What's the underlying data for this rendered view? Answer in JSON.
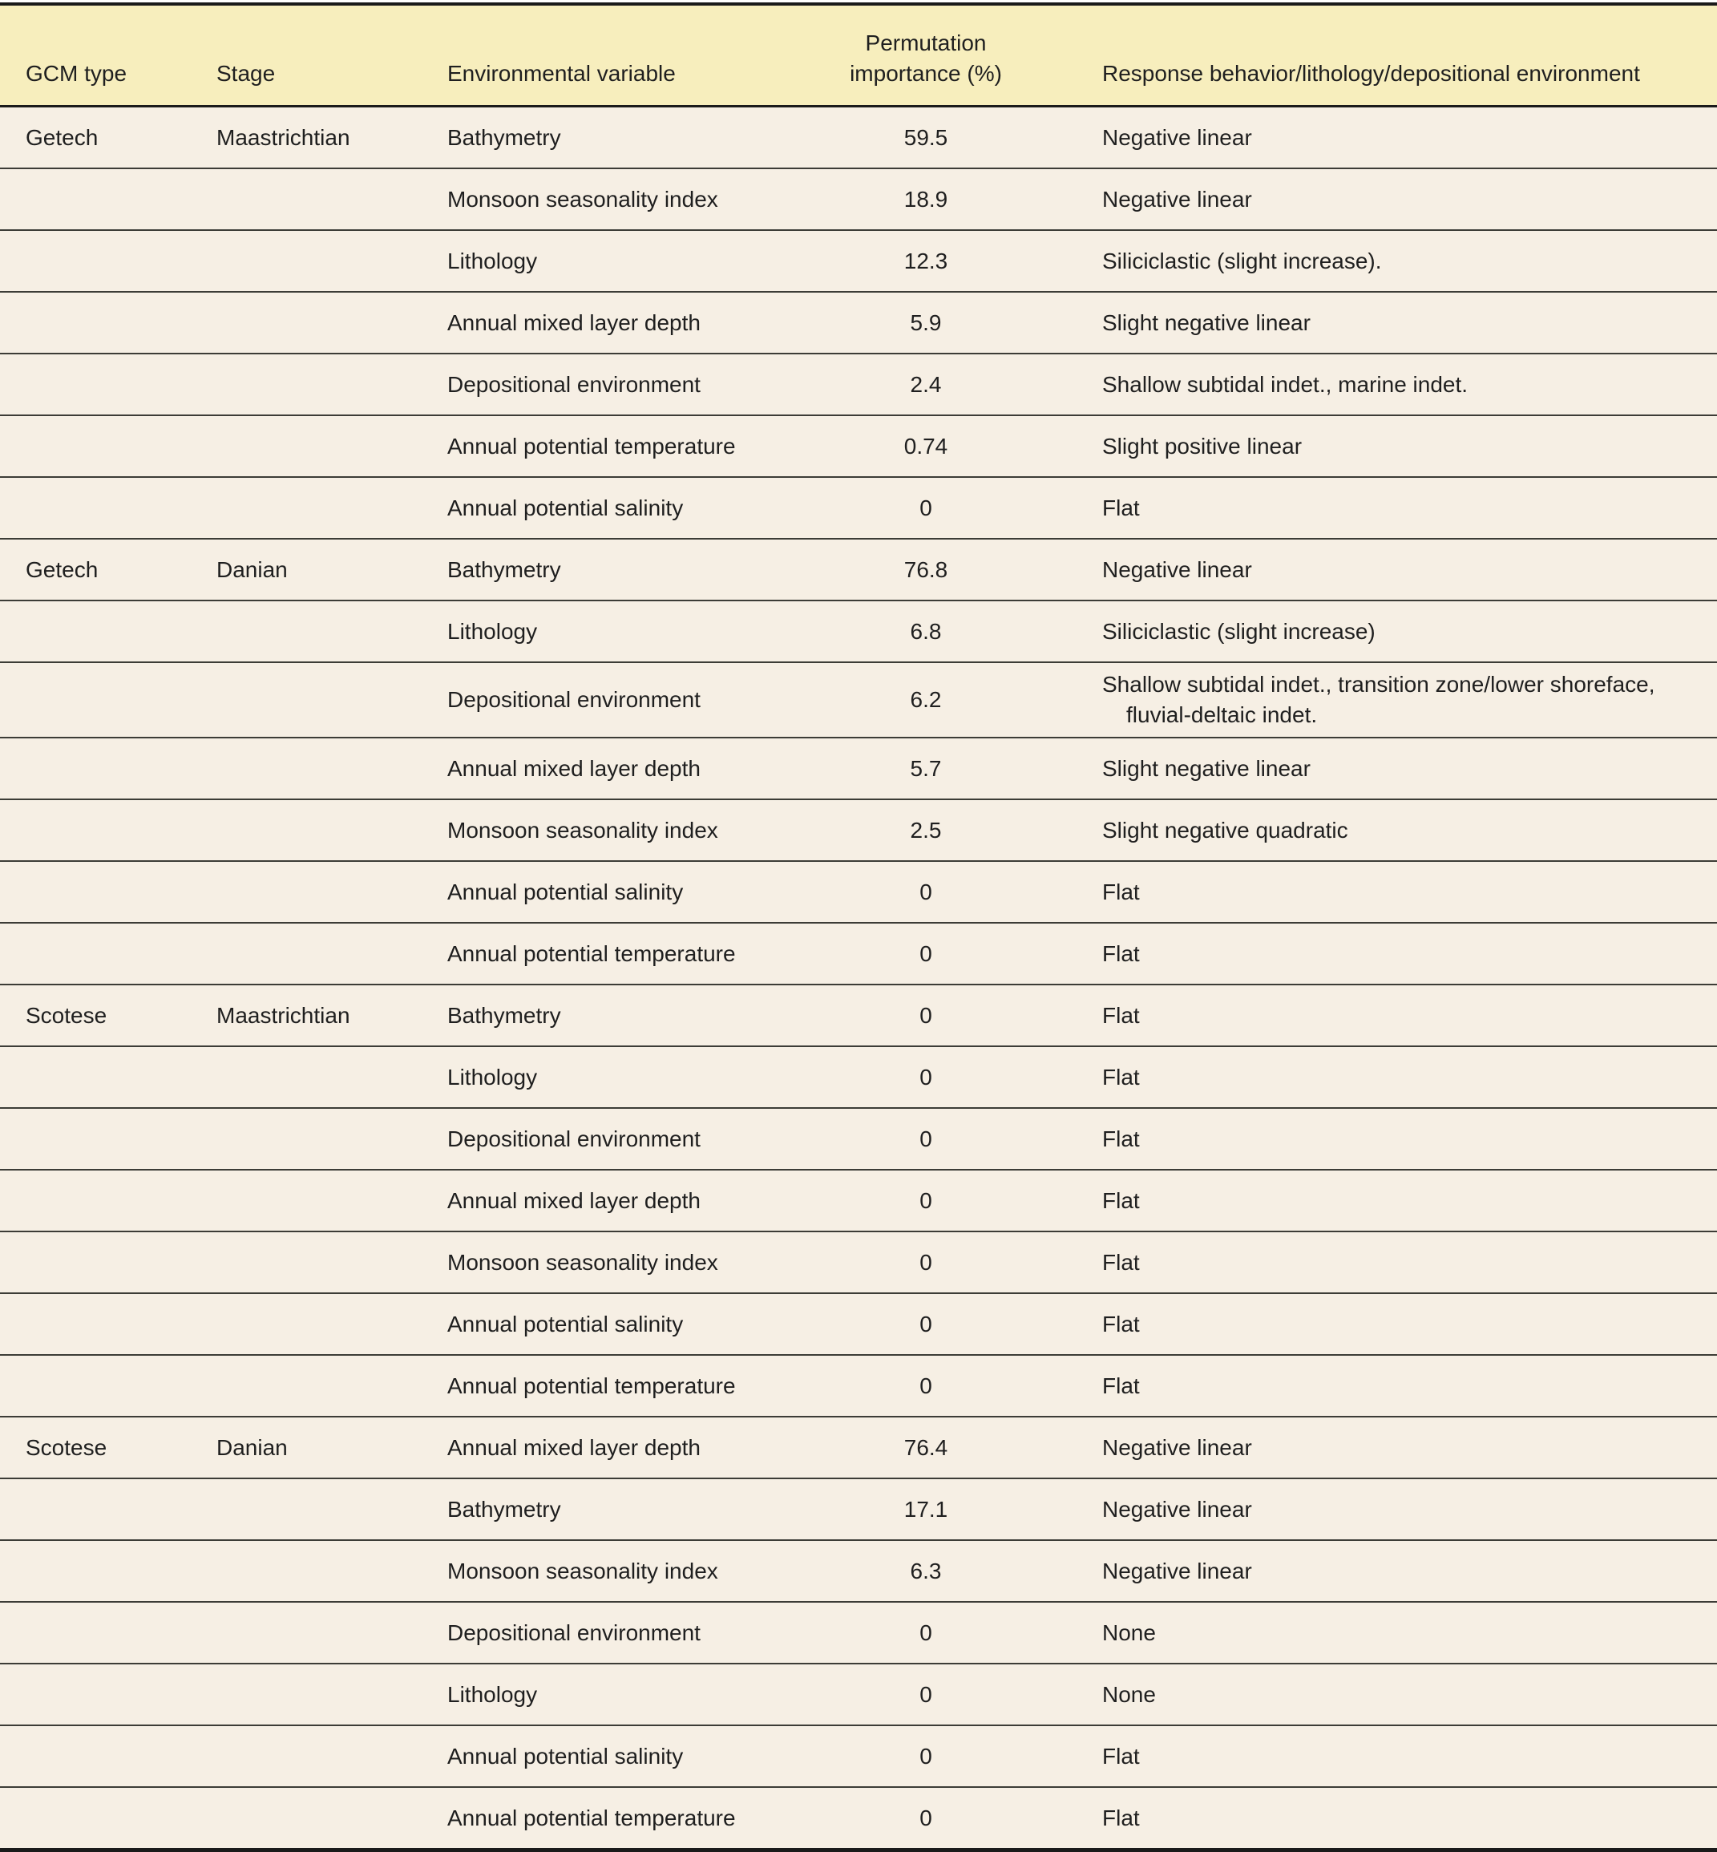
{
  "table": {
    "columns": [
      "GCM type",
      "Stage",
      "Environmental variable",
      "Permutation importance (%)",
      "Response behavior/lithology/depositional environment"
    ],
    "rows": [
      {
        "gcm": "Getech",
        "stage": "Maastrichtian",
        "variable": "Bathymetry",
        "importance": "59.5",
        "response": "Negative linear"
      },
      {
        "gcm": "",
        "stage": "",
        "variable": "Monsoon seasonality index",
        "importance": "18.9",
        "response": "Negative linear"
      },
      {
        "gcm": "",
        "stage": "",
        "variable": "Lithology",
        "importance": "12.3",
        "response": "Siliciclastic (slight increase)."
      },
      {
        "gcm": "",
        "stage": "",
        "variable": "Annual mixed layer depth",
        "importance": "5.9",
        "response": "Slight negative linear"
      },
      {
        "gcm": "",
        "stage": "",
        "variable": "Depositional environment",
        "importance": "2.4",
        "response": "Shallow subtidal indet., marine indet."
      },
      {
        "gcm": "",
        "stage": "",
        "variable": "Annual potential temperature",
        "importance": "0.74",
        "response": "Slight positive linear"
      },
      {
        "gcm": "",
        "stage": "",
        "variable": "Annual potential salinity",
        "importance": "0",
        "response": "Flat"
      },
      {
        "gcm": "Getech",
        "stage": "Danian",
        "variable": "Bathymetry",
        "importance": "76.8",
        "response": "Negative linear"
      },
      {
        "gcm": "",
        "stage": "",
        "variable": "Lithology",
        "importance": "6.8",
        "response": "Siliciclastic (slight increase)"
      },
      {
        "gcm": "",
        "stage": "",
        "variable": "Depositional environment",
        "importance": "6.2",
        "response": "Shallow subtidal indet., transition zone/lower shoreface, fluvial-deltaic indet."
      },
      {
        "gcm": "",
        "stage": "",
        "variable": "Annual mixed layer depth",
        "importance": "5.7",
        "response": "Slight negative linear"
      },
      {
        "gcm": "",
        "stage": "",
        "variable": "Monsoon seasonality index",
        "importance": "2.5",
        "response": "Slight negative quadratic"
      },
      {
        "gcm": "",
        "stage": "",
        "variable": "Annual potential salinity",
        "importance": "0",
        "response": "Flat"
      },
      {
        "gcm": "",
        "stage": "",
        "variable": "Annual potential temperature",
        "importance": "0",
        "response": "Flat"
      },
      {
        "gcm": "Scotese",
        "stage": "Maastrichtian",
        "variable": "Bathymetry",
        "importance": "0",
        "response": "Flat"
      },
      {
        "gcm": "",
        "stage": "",
        "variable": "Lithology",
        "importance": "0",
        "response": "Flat"
      },
      {
        "gcm": "",
        "stage": "",
        "variable": "Depositional environment",
        "importance": "0",
        "response": "Flat"
      },
      {
        "gcm": "",
        "stage": "",
        "variable": "Annual mixed layer depth",
        "importance": "0",
        "response": "Flat"
      },
      {
        "gcm": "",
        "stage": "",
        "variable": "Monsoon seasonality index",
        "importance": "0",
        "response": "Flat"
      },
      {
        "gcm": "",
        "stage": "",
        "variable": "Annual potential salinity",
        "importance": "0",
        "response": "Flat"
      },
      {
        "gcm": "",
        "stage": "",
        "variable": "Annual potential temperature",
        "importance": "0",
        "response": "Flat"
      },
      {
        "gcm": "Scotese",
        "stage": "Danian",
        "variable": "Annual mixed layer depth",
        "importance": "76.4",
        "response": "Negative linear"
      },
      {
        "gcm": "",
        "stage": "",
        "variable": "Bathymetry",
        "importance": "17.1",
        "response": "Negative linear"
      },
      {
        "gcm": "",
        "stage": "",
        "variable": "Monsoon seasonality index",
        "importance": "6.3",
        "response": "Negative linear"
      },
      {
        "gcm": "",
        "stage": "",
        "variable": "Depositional environment",
        "importance": "0",
        "response": "None"
      },
      {
        "gcm": "",
        "stage": "",
        "variable": "Lithology",
        "importance": "0",
        "response": "None"
      },
      {
        "gcm": "",
        "stage": "",
        "variable": "Annual potential salinity",
        "importance": "0",
        "response": "Flat"
      },
      {
        "gcm": "",
        "stage": "",
        "variable": "Annual potential temperature",
        "importance": "0",
        "response": "Flat"
      }
    ]
  },
  "colors": {
    "header_background": "#f7eebd",
    "body_background": "#f6efe4",
    "rule_heavy": "#1a1a1a",
    "rule_light": "#3c3c36",
    "text": "#1f1f1f"
  }
}
